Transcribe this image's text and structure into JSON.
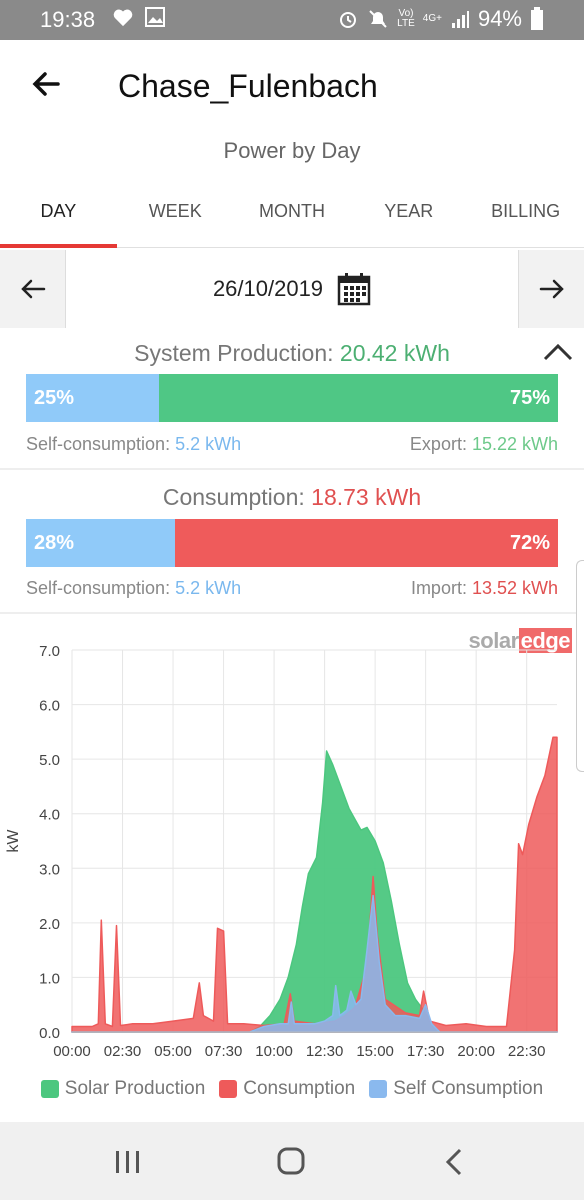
{
  "status_bar": {
    "time": "19:38",
    "battery": "94%",
    "lte_label": "Vo)\nLTE",
    "net_label": "4G+"
  },
  "header": {
    "title": "Chase_Fulenbach",
    "subtitle": "Power by Day"
  },
  "tabs": [
    {
      "label": "DAY",
      "active": true
    },
    {
      "label": "WEEK",
      "active": false
    },
    {
      "label": "MONTH",
      "active": false
    },
    {
      "label": "YEAR",
      "active": false
    },
    {
      "label": "BILLING",
      "active": false
    }
  ],
  "date": "26/10/2019",
  "production": {
    "label": "System Production: ",
    "value": "20.42 kWh",
    "self_pct": "25%",
    "export_pct": "75%",
    "self_fraction": 0.25,
    "self_label": "Self-consumption: ",
    "self_value": "5.2 kWh",
    "export_label": "Export: ",
    "export_value": "15.22 kWh"
  },
  "consumption": {
    "label": "Consumption: ",
    "value": "18.73 kWh",
    "self_pct": "28%",
    "import_pct": "72%",
    "self_fraction": 0.28,
    "self_label": "Self-consumption: ",
    "self_value": "5.2 kWh",
    "import_label": "Import: ",
    "import_value": "13.52 kWh"
  },
  "logo": {
    "part1": "solar",
    "part2": "edge"
  },
  "colors": {
    "solar": "#4cc77f",
    "consumption": "#ee5a5a",
    "self": "#8ab9ee",
    "accent": "#e53935"
  },
  "chart_data": {
    "type": "area",
    "ylabel": "kW",
    "ylim": [
      0,
      7
    ],
    "yticks": [
      "0.0",
      "1.0",
      "2.0",
      "3.0",
      "4.0",
      "5.0",
      "6.0",
      "7.0"
    ],
    "xlim": [
      0,
      24
    ],
    "xticks": [
      "00:00",
      "02:30",
      "05:00",
      "07:30",
      "10:00",
      "12:30",
      "15:00",
      "17:30",
      "20:00",
      "22:30"
    ],
    "grid": true,
    "series": [
      {
        "name": "Solar Production",
        "color": "#4cc77f",
        "points": [
          [
            0,
            0
          ],
          [
            8.8,
            0
          ],
          [
            9.3,
            0.1
          ],
          [
            9.8,
            0.3
          ],
          [
            10.3,
            0.6
          ],
          [
            10.7,
            1.0
          ],
          [
            11.1,
            1.6
          ],
          [
            11.4,
            2.3
          ],
          [
            11.7,
            2.9
          ],
          [
            12.1,
            3.2
          ],
          [
            12.4,
            4.2
          ],
          [
            12.6,
            5.15
          ],
          [
            12.9,
            4.9
          ],
          [
            13.3,
            4.5
          ],
          [
            13.7,
            4.1
          ],
          [
            14.0,
            3.9
          ],
          [
            14.3,
            3.7
          ],
          [
            14.6,
            3.75
          ],
          [
            15.0,
            3.5
          ],
          [
            15.4,
            3.1
          ],
          [
            15.8,
            2.4
          ],
          [
            16.2,
            1.6
          ],
          [
            16.6,
            0.9
          ],
          [
            17.0,
            0.6
          ],
          [
            17.4,
            0.4
          ],
          [
            17.8,
            0.15
          ],
          [
            18.2,
            0
          ],
          [
            24,
            0
          ]
        ]
      },
      {
        "name": "Consumption",
        "color": "#ee5a5a",
        "points": [
          [
            0,
            0.1
          ],
          [
            1.0,
            0.1
          ],
          [
            1.3,
            0.15
          ],
          [
            1.45,
            2.05
          ],
          [
            1.65,
            0.15
          ],
          [
            2.0,
            0.1
          ],
          [
            2.2,
            1.95
          ],
          [
            2.4,
            0.12
          ],
          [
            3.0,
            0.15
          ],
          [
            4.0,
            0.15
          ],
          [
            5.0,
            0.2
          ],
          [
            6.0,
            0.25
          ],
          [
            6.3,
            0.9
          ],
          [
            6.5,
            0.3
          ],
          [
            7.0,
            0.2
          ],
          [
            7.2,
            1.9
          ],
          [
            7.5,
            1.85
          ],
          [
            7.7,
            0.15
          ],
          [
            8.5,
            0.15
          ],
          [
            9.5,
            0.12
          ],
          [
            10.5,
            0.15
          ],
          [
            10.8,
            0.7
          ],
          [
            11.0,
            0.2
          ],
          [
            12.0,
            0.15
          ],
          [
            13.0,
            0.2
          ],
          [
            13.5,
            0.3
          ],
          [
            14.0,
            0.45
          ],
          [
            14.6,
            1.2
          ],
          [
            14.9,
            2.85
          ],
          [
            15.1,
            1.8
          ],
          [
            15.5,
            0.6
          ],
          [
            16.5,
            0.35
          ],
          [
            17.2,
            0.3
          ],
          [
            17.4,
            0.75
          ],
          [
            17.7,
            0.2
          ],
          [
            18.5,
            0.12
          ],
          [
            19.5,
            0.15
          ],
          [
            20.5,
            0.1
          ],
          [
            21.5,
            0.1
          ],
          [
            21.9,
            1.5
          ],
          [
            22.1,
            3.45
          ],
          [
            22.3,
            3.25
          ],
          [
            22.6,
            3.8
          ],
          [
            23.0,
            4.3
          ],
          [
            23.4,
            4.7
          ],
          [
            23.8,
            5.4
          ],
          [
            24,
            5.4
          ]
        ]
      },
      {
        "name": "Self Consumption",
        "color": "#8ab9ee",
        "points": [
          [
            0,
            0
          ],
          [
            8.8,
            0
          ],
          [
            9.5,
            0.1
          ],
          [
            10.3,
            0.15
          ],
          [
            10.7,
            0.15
          ],
          [
            10.85,
            0.55
          ],
          [
            11.0,
            0.15
          ],
          [
            12.0,
            0.15
          ],
          [
            12.5,
            0.2
          ],
          [
            12.9,
            0.3
          ],
          [
            13.05,
            0.85
          ],
          [
            13.25,
            0.3
          ],
          [
            13.6,
            0.4
          ],
          [
            13.8,
            0.75
          ],
          [
            14.05,
            0.5
          ],
          [
            14.3,
            0.6
          ],
          [
            14.6,
            1.5
          ],
          [
            14.9,
            2.5
          ],
          [
            15.2,
            1.3
          ],
          [
            15.5,
            0.5
          ],
          [
            16.0,
            0.3
          ],
          [
            16.5,
            0.3
          ],
          [
            17.2,
            0.25
          ],
          [
            17.5,
            0.5
          ],
          [
            17.8,
            0.15
          ],
          [
            18.2,
            0
          ],
          [
            24,
            0
          ]
        ]
      }
    ]
  }
}
